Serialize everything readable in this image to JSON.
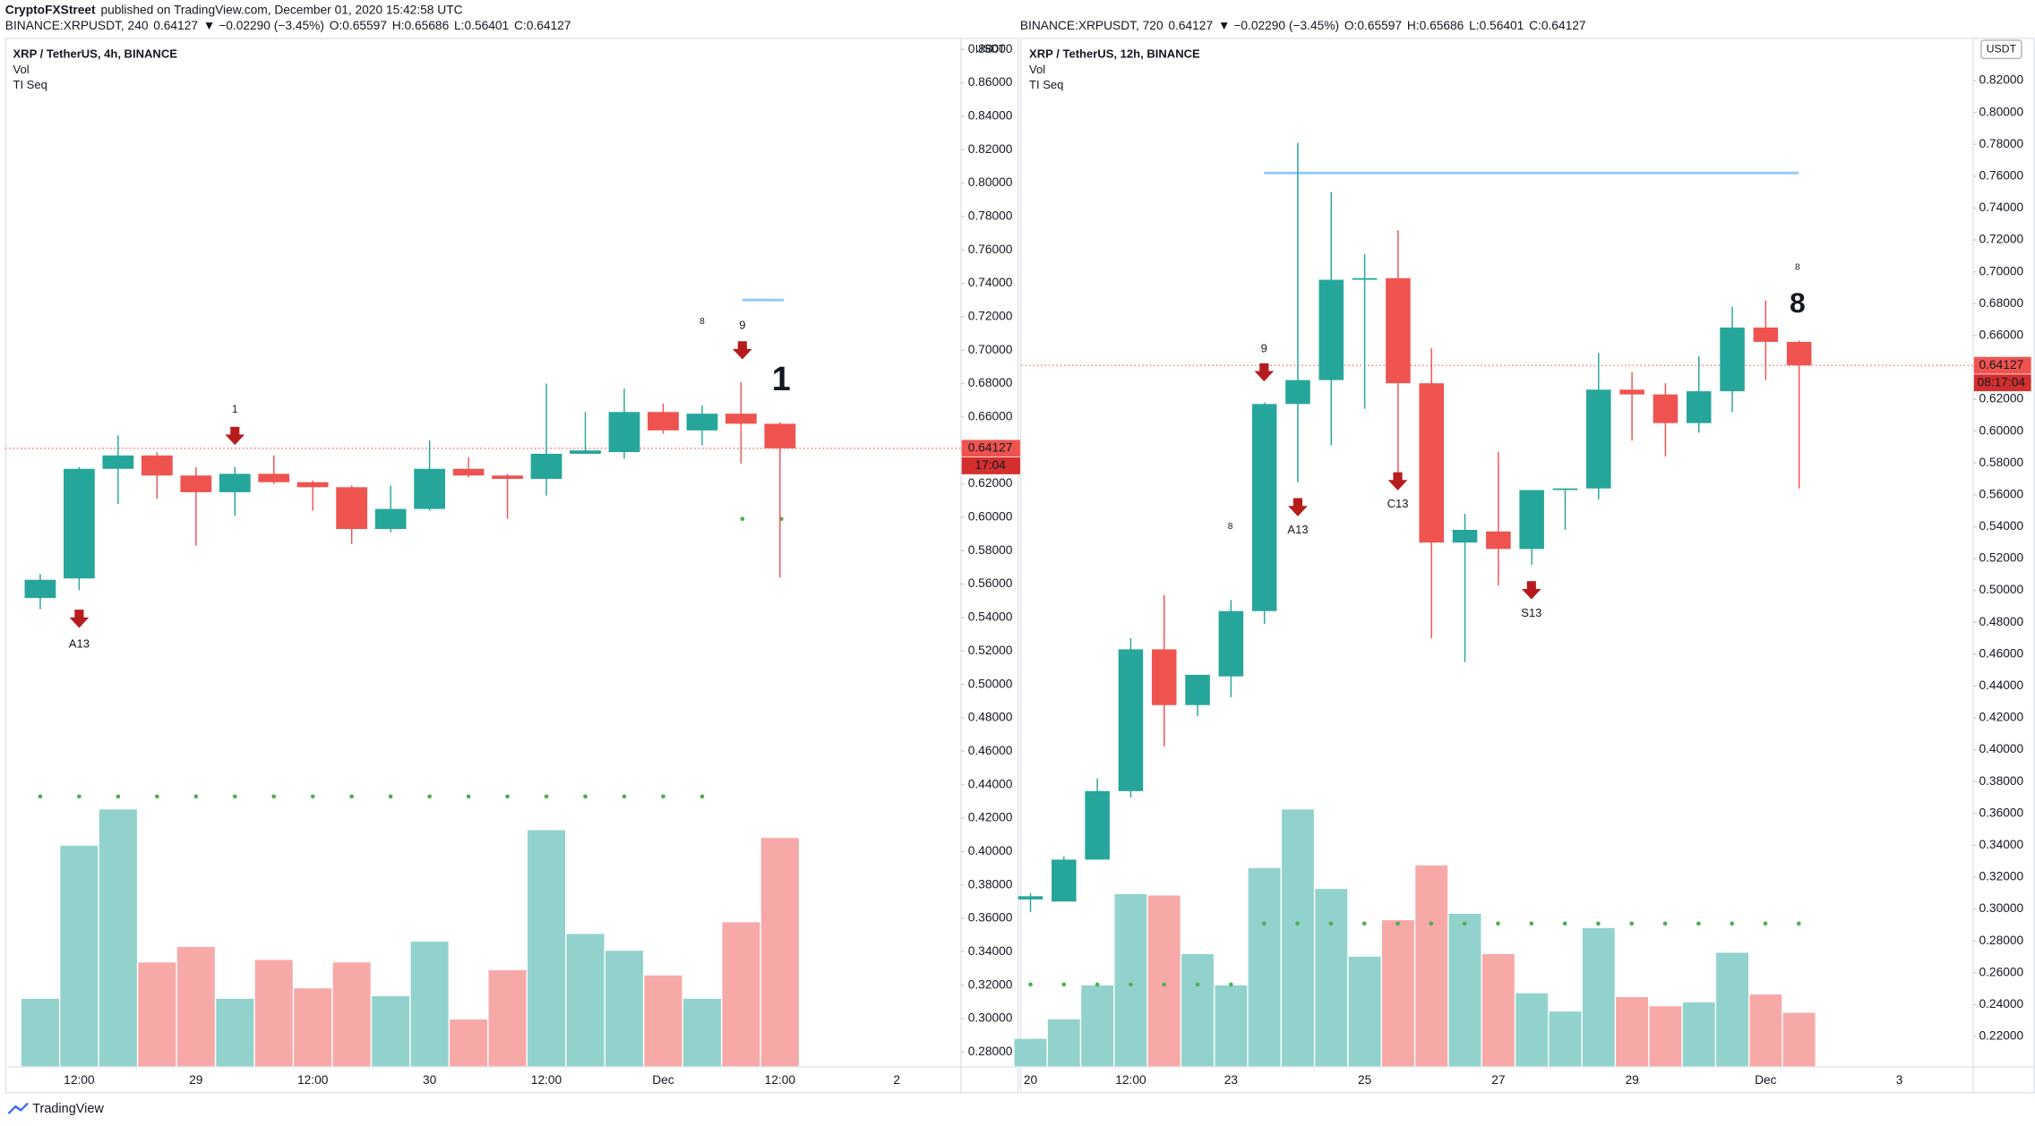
{
  "header": {
    "publisher": "CryptoFXStreet",
    "published": "published on TradingView.com, December 01, 2020 15:42:58 UTC"
  },
  "footer": {
    "brand": "TradingView"
  },
  "chart_data": [
    {
      "type": "candlestick",
      "symbol": "BINANCE:XRPUSDT, 240",
      "change": "▼ −0.02290 (−3.45%)",
      "ohlc": [
        "O:0.65597",
        "H:0.65686",
        "L:0.56401",
        "C:0.64127"
      ],
      "title": "XRP / TetherUS, 4h, BINANCE",
      "indicators": [
        "Vol",
        "TI Seq"
      ],
      "currency": "USDT",
      "last_price": 0.64127,
      "countdown": "17:04",
      "level": 0.73,
      "up_color": "#26a69a",
      "down_color": "#ef5350",
      "up_volume_color": "#92d2cc",
      "down_volume_color": "#f7a9a7",
      "categories": [
        null,
        "12:00",
        null,
        null,
        "29",
        null,
        null,
        "12:00",
        null,
        null,
        "30",
        null,
        null,
        "12:00",
        null,
        null,
        "Dec",
        null,
        null,
        "12:00",
        null,
        null,
        "2"
      ],
      "open": [
        0.5517,
        0.5634,
        0.629,
        0.637,
        0.625,
        0.615,
        0.626,
        0.621,
        0.618,
        0.593,
        0.605,
        0.629,
        0.625,
        0.623,
        0.638,
        0.639,
        0.663,
        0.652,
        0.662,
        0.65597,
        null,
        null,
        null
      ],
      "high": [
        0.566,
        0.63,
        0.649,
        0.639,
        0.63,
        0.63,
        0.637,
        0.622,
        0.619,
        0.619,
        0.646,
        0.636,
        0.626,
        0.68,
        0.663,
        0.677,
        0.668,
        0.667,
        0.681,
        0.65686,
        null,
        null,
        null
      ],
      "low": [
        0.545,
        0.5564,
        0.608,
        0.611,
        0.583,
        0.601,
        0.62,
        0.604,
        0.584,
        0.591,
        0.604,
        0.624,
        0.599,
        0.613,
        0.638,
        0.635,
        0.65,
        0.643,
        0.632,
        0.56401,
        null,
        null,
        null
      ],
      "close": [
        0.5626,
        0.629,
        0.637,
        0.625,
        0.615,
        0.626,
        0.621,
        0.618,
        0.593,
        0.605,
        0.629,
        0.625,
        0.623,
        0.638,
        0.64,
        0.663,
        0.652,
        0.662,
        0.656,
        0.64127,
        null,
        null,
        null
      ],
      "volume": [
        52,
        170,
        198,
        80,
        92,
        52,
        82,
        60,
        80,
        54,
        96,
        36,
        74,
        182,
        102,
        89,
        70,
        52,
        111,
        176,
        null,
        null,
        null
      ],
      "annotations": [
        {
          "text": "A13",
          "color": "#2196f3"
        },
        {
          "text": "1",
          "color": "#ef5350"
        },
        {
          "text": "9",
          "color": "#4caf50"
        },
        {
          "text": "1",
          "color": "#ef5350"
        },
        {
          "text": "8",
          "color": "#ff9800"
        }
      ],
      "ylim": [
        0.2715,
        0.8862
      ],
      "yticks": [
        {
          "value": 0.28,
          "label": "0.28000"
        },
        {
          "value": 0.3,
          "label": "0.30000"
        },
        {
          "value": 0.32,
          "label": "0.32000"
        },
        {
          "value": 0.34,
          "label": "0.34000"
        },
        {
          "value": 0.36,
          "label": "0.36000"
        },
        {
          "value": 0.38,
          "label": "0.38000"
        },
        {
          "value": 0.4,
          "label": "0.40000"
        },
        {
          "value": 0.42,
          "label": "0.42000"
        },
        {
          "value": 0.44,
          "label": "0.44000"
        },
        {
          "value": 0.46,
          "label": "0.46000"
        },
        {
          "value": 0.48,
          "label": "0.48000"
        },
        {
          "value": 0.5,
          "label": "0.50000"
        },
        {
          "value": 0.52,
          "label": "0.52000"
        },
        {
          "value": 0.54,
          "label": "0.54000"
        },
        {
          "value": 0.56,
          "label": "0.56000"
        },
        {
          "value": 0.58,
          "label": "0.58000"
        },
        {
          "value": 0.6,
          "label": "0.60000"
        },
        {
          "value": 0.62,
          "label": "0.62000"
        },
        {
          "value": 0.64,
          "label": "0.64000"
        },
        {
          "value": 0.66,
          "label": "0.66000"
        },
        {
          "value": 0.68,
          "label": "0.68000"
        },
        {
          "value": 0.7,
          "label": "0.70000"
        },
        {
          "value": 0.72,
          "label": "0.72000"
        },
        {
          "value": 0.74,
          "label": "0.74000"
        },
        {
          "value": 0.76,
          "label": "0.76000"
        },
        {
          "value": 0.78,
          "label": "0.78000"
        },
        {
          "value": 0.8,
          "label": "0.80000"
        },
        {
          "value": 0.82,
          "label": "0.82000"
        },
        {
          "value": 0.84,
          "label": "0.84000"
        },
        {
          "value": 0.86,
          "label": "0.86000"
        },
        {
          "value": 0.88,
          "label": "0.88000"
        }
      ],
      "grid": false
    },
    {
      "type": "candlestick",
      "symbol": "BINANCE:XRPUSDT, 720",
      "change": "▼ −0.02290 (−3.45%)",
      "ohlc": [
        "O:0.65597",
        "H:0.65686",
        "L:0.56401",
        "C:0.64127"
      ],
      "title": "XRP / TetherUS, 12h, BINANCE",
      "indicators": [
        "Vol",
        "TI Seq"
      ],
      "currency": "USDT",
      "last_price": 0.64127,
      "countdown": "08:17:04",
      "level": 0.762,
      "up_color": "#26a69a",
      "down_color": "#ef5350",
      "up_volume_color": "#92d2cc",
      "down_volume_color": "#f7a9a7",
      "categories": [
        "20",
        null,
        null,
        "12:00",
        null,
        null,
        "23",
        null,
        null,
        null,
        "25",
        null,
        null,
        null,
        "27",
        null,
        null,
        null,
        "29",
        null,
        null,
        null,
        "Dec",
        null,
        null,
        null,
        "3"
      ],
      "open": [
        0.306,
        0.3047,
        0.331,
        0.374,
        0.463,
        0.428,
        0.446,
        0.487,
        0.617,
        0.632,
        0.695,
        0.696,
        0.63,
        0.53,
        0.537,
        0.526,
        0.563,
        0.564,
        0.626,
        0.623,
        0.605,
        0.625,
        0.665,
        0.65597,
        null,
        null,
        null
      ],
      "high": [
        0.31,
        0.333,
        0.382,
        0.47,
        0.497,
        0.447,
        0.494,
        0.618,
        0.781,
        0.75,
        0.711,
        0.726,
        0.652,
        0.548,
        0.587,
        0.563,
        0.564,
        0.649,
        0.637,
        0.63,
        0.647,
        0.678,
        0.682,
        0.65686,
        null,
        null,
        null
      ],
      "low": [
        0.298,
        0.3047,
        0.331,
        0.37,
        0.402,
        0.421,
        0.433,
        0.479,
        0.568,
        0.591,
        0.614,
        0.563,
        0.47,
        0.455,
        0.503,
        0.516,
        0.538,
        0.557,
        0.594,
        0.584,
        0.599,
        0.612,
        0.632,
        0.56401,
        null,
        null,
        null
      ],
      "close": [
        0.308,
        0.331,
        0.374,
        0.463,
        0.428,
        0.447,
        0.487,
        0.617,
        0.632,
        0.695,
        0.696,
        0.63,
        0.53,
        0.538,
        0.526,
        0.563,
        0.564,
        0.626,
        0.623,
        0.605,
        0.625,
        0.665,
        0.656,
        0.64127,
        null,
        null,
        null
      ],
      "volume": [
        21,
        36,
        62,
        132,
        131,
        86,
        62,
        152,
        197,
        136,
        84,
        112,
        154,
        117,
        86,
        56,
        42,
        106,
        53,
        46,
        49,
        87,
        55,
        41,
        null,
        null,
        null
      ],
      "annotations": [
        {
          "text": "9",
          "color": "#4caf50"
        },
        {
          "text": "A13",
          "color": "#2196f3"
        },
        {
          "text": "8",
          "color": "#ff9800"
        },
        {
          "text": "C13",
          "color": "#e040fb"
        },
        {
          "text": "S13",
          "color": "#ff9800"
        },
        {
          "text": "8",
          "color": "#22c55e"
        },
        {
          "text": "8",
          "color": "#ff9800"
        }
      ],
      "ylim": [
        0.2013,
        0.8461
      ],
      "yticks": [
        {
          "value": 0.22,
          "label": "0.22000"
        },
        {
          "value": 0.24,
          "label": "0.24000"
        },
        {
          "value": 0.26,
          "label": "0.26000"
        },
        {
          "value": 0.28,
          "label": "0.28000"
        },
        {
          "value": 0.3,
          "label": "0.30000"
        },
        {
          "value": 0.32,
          "label": "0.32000"
        },
        {
          "value": 0.34,
          "label": "0.34000"
        },
        {
          "value": 0.36,
          "label": "0.36000"
        },
        {
          "value": 0.38,
          "label": "0.38000"
        },
        {
          "value": 0.4,
          "label": "0.40000"
        },
        {
          "value": 0.42,
          "label": "0.42000"
        },
        {
          "value": 0.44,
          "label": "0.44000"
        },
        {
          "value": 0.46,
          "label": "0.46000"
        },
        {
          "value": 0.48,
          "label": "0.48000"
        },
        {
          "value": 0.5,
          "label": "0.50000"
        },
        {
          "value": 0.52,
          "label": "0.52000"
        },
        {
          "value": 0.54,
          "label": "0.54000"
        },
        {
          "value": 0.56,
          "label": "0.56000"
        },
        {
          "value": 0.58,
          "label": "0.58000"
        },
        {
          "value": 0.6,
          "label": "0.60000"
        },
        {
          "value": 0.62,
          "label": "0.62000"
        },
        {
          "value": 0.64,
          "label": "0.64000"
        },
        {
          "value": 0.66,
          "label": "0.66000"
        },
        {
          "value": 0.68,
          "label": "0.68000"
        },
        {
          "value": 0.7,
          "label": "0.70000"
        },
        {
          "value": 0.72,
          "label": "0.72000"
        },
        {
          "value": 0.74,
          "label": "0.74000"
        },
        {
          "value": 0.76,
          "label": "0.76000"
        },
        {
          "value": 0.78,
          "label": "0.78000"
        },
        {
          "value": 0.8,
          "label": "0.80000"
        },
        {
          "value": 0.82,
          "label": "0.82000"
        }
      ],
      "grid": false
    }
  ]
}
